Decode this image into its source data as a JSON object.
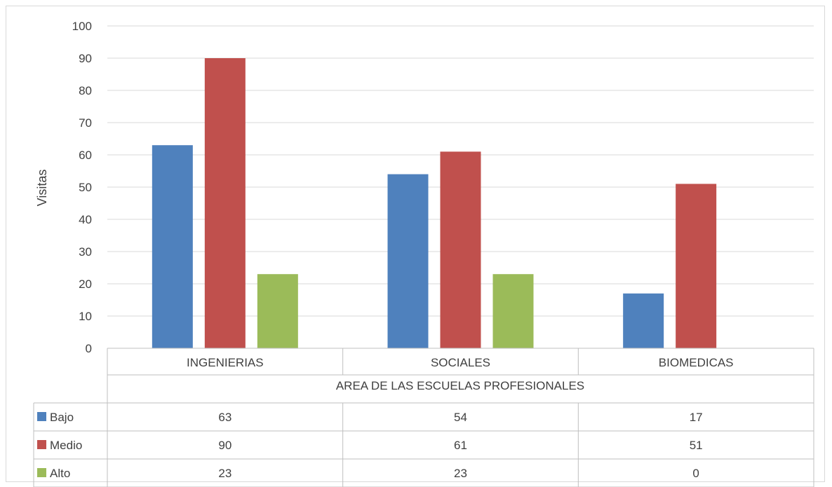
{
  "chart_data": {
    "type": "bar",
    "title": "",
    "xlabel": "AREA DE LAS ESCUELAS PROFESIONALES",
    "ylabel": "Visitas",
    "ylim": [
      0,
      100
    ],
    "yticks": [
      0,
      10,
      20,
      30,
      40,
      50,
      60,
      70,
      80,
      90,
      100
    ],
    "grid": true,
    "legend": "data-table",
    "categories": [
      "INGENIERIAS",
      "SOCIALES",
      "BIOMEDICAS"
    ],
    "series": [
      {
        "name": "Bajo",
        "color": "#4f81bd",
        "values": [
          63,
          54,
          17
        ]
      },
      {
        "name": "Medio",
        "color": "#c0504d",
        "values": [
          90,
          61,
          51
        ]
      },
      {
        "name": "Alto",
        "color": "#9bbb59",
        "values": [
          23,
          23,
          0
        ]
      }
    ]
  }
}
